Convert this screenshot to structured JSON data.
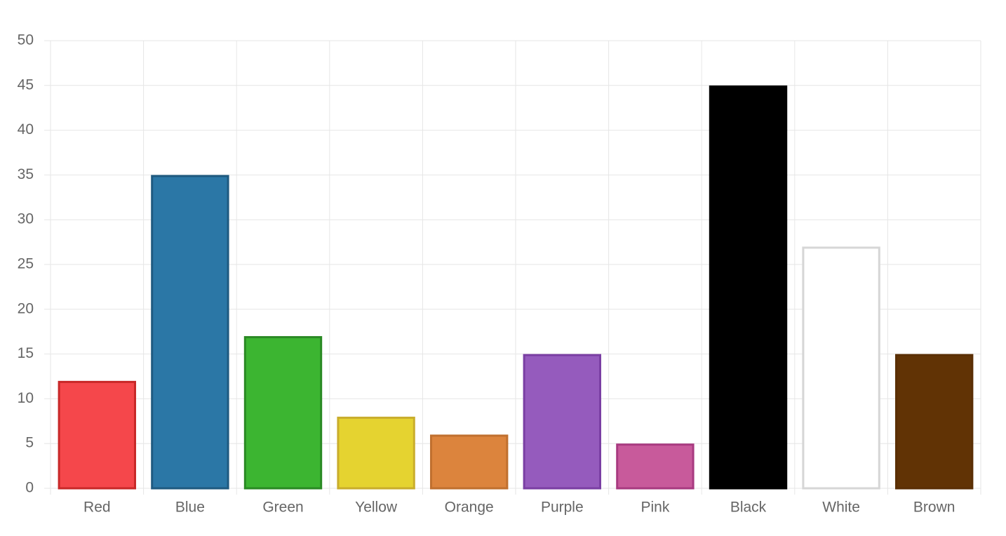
{
  "chart_data": {
    "type": "bar",
    "categories": [
      "Red",
      "Blue",
      "Green",
      "Yellow",
      "Orange",
      "Purple",
      "Pink",
      "Black",
      "White",
      "Brown"
    ],
    "values": [
      12,
      35,
      17,
      8,
      6,
      15,
      5,
      45,
      27,
      15
    ],
    "colors": [
      "#f5474b",
      "#2b77a6",
      "#3cb531",
      "#e5d330",
      "#dc843d",
      "#955bbd",
      "#c85a9b",
      "#000000",
      "#ffffff",
      "#613305"
    ],
    "border_colors": [
      "#c82828",
      "#1f5a80",
      "#2a8a24",
      "#c9ad2c",
      "#c0702f",
      "#7a3fa3",
      "#a83a80",
      "#000000",
      "#d6d6d6",
      "#5a2f05"
    ],
    "ylim": [
      0,
      50
    ],
    "yticks": [
      0,
      5,
      10,
      15,
      20,
      25,
      30,
      35,
      40,
      45,
      50
    ],
    "grid": true
  }
}
